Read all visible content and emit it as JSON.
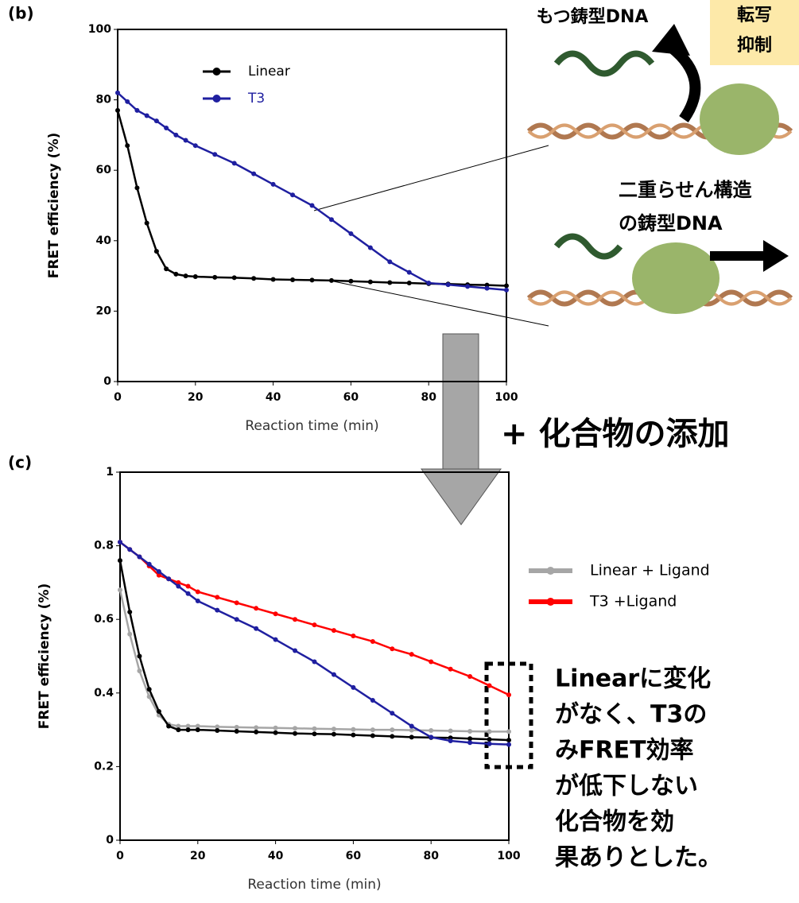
{
  "chart_data": [
    {
      "type": "line",
      "label": "(b)",
      "xlabel": "Reaction time (min)",
      "ylabel": "FRET efficiency (%)",
      "x": [
        0,
        2.5,
        5,
        7.5,
        10,
        12.5,
        15,
        17.5,
        20,
        25,
        30,
        35,
        40,
        45,
        50,
        55,
        60,
        65,
        70,
        75,
        80,
        85,
        90,
        95,
        100
      ],
      "series": [
        {
          "name": "Linear",
          "color": "#000000",
          "values": [
            77,
            67,
            55,
            45,
            37,
            32,
            30.5,
            30,
            29.8,
            29.6,
            29.5,
            29.3,
            29,
            28.9,
            28.8,
            28.7,
            28.5,
            28.3,
            28.1,
            28,
            27.8,
            27.7,
            27.5,
            27.4,
            27.2
          ]
        },
        {
          "name": "T3",
          "color": "#1f1fa0",
          "values": [
            82,
            79.5,
            77,
            75.5,
            74,
            72,
            70,
            68.5,
            67,
            64.5,
            62,
            59,
            56,
            53,
            50,
            46,
            42,
            38,
            34,
            31,
            28,
            27.5,
            27,
            26.5,
            26
          ]
        }
      ],
      "xlim": [
        0,
        100
      ],
      "xticks": [
        0,
        20,
        40,
        60,
        80,
        100
      ],
      "ylim": [
        0,
        100
      ],
      "yticks": [
        0,
        20,
        40,
        60,
        80,
        100
      ],
      "legend": "upper left"
    },
    {
      "type": "line",
      "label": "(c)",
      "xlabel": "Reaction time (min)",
      "ylabel": "FRET efficiency (%)",
      "x": [
        0,
        2.5,
        5,
        7.5,
        10,
        12.5,
        15,
        17.5,
        20,
        25,
        30,
        35,
        40,
        45,
        50,
        55,
        60,
        65,
        70,
        75,
        80,
        85,
        90,
        95,
        100
      ],
      "series": [
        {
          "name": "Linear + Ligand",
          "color": "#a6a6a6",
          "values": [
            0.68,
            0.56,
            0.46,
            0.39,
            0.34,
            0.315,
            0.31,
            0.31,
            0.31,
            0.308,
            0.307,
            0.306,
            0.305,
            0.304,
            0.303,
            0.302,
            0.301,
            0.3,
            0.3,
            0.299,
            0.298,
            0.297,
            0.296,
            0.295,
            0.295
          ]
        },
        {
          "name": "T3 +Ligand",
          "color": "#ff0000",
          "values": [
            0.81,
            0.79,
            0.77,
            0.745,
            0.72,
            0.71,
            0.7,
            0.69,
            0.675,
            0.66,
            0.645,
            0.63,
            0.615,
            0.6,
            0.585,
            0.57,
            0.555,
            0.54,
            0.52,
            0.505,
            0.485,
            0.465,
            0.445,
            0.42,
            0.395
          ]
        },
        {
          "color": "#000000",
          "values": [
            0.76,
            0.62,
            0.5,
            0.41,
            0.35,
            0.31,
            0.3,
            0.3,
            0.3,
            0.298,
            0.296,
            0.294,
            0.292,
            0.29,
            0.289,
            0.288,
            0.286,
            0.284,
            0.282,
            0.28,
            0.279,
            0.278,
            0.276,
            0.274,
            0.272
          ]
        },
        {
          "color": "#1f1fa0",
          "values": [
            0.81,
            0.79,
            0.77,
            0.75,
            0.73,
            0.71,
            0.69,
            0.67,
            0.65,
            0.625,
            0.6,
            0.575,
            0.545,
            0.515,
            0.485,
            0.45,
            0.415,
            0.38,
            0.345,
            0.31,
            0.28,
            0.27,
            0.265,
            0.262,
            0.26
          ]
        }
      ],
      "xlim": [
        0,
        100
      ],
      "xticks": [
        0,
        20,
        40,
        60,
        80,
        100
      ],
      "ylim": [
        0,
        1
      ],
      "yticks": [
        0,
        0.2,
        0.4,
        0.6,
        0.8,
        1
      ],
      "legend": "outside right"
    }
  ],
  "annotations": {
    "template_label": "もつ鋳型DNA",
    "suppression": [
      "転写",
      "抑制"
    ],
    "duplex": [
      "二重らせん構造",
      "の鋳型DNA"
    ],
    "addition": "+ 化合物の添加",
    "conclusion": [
      "Linearに変化",
      "がなく、T3の",
      "みFRET効率",
      "が低下しない",
      "化合物を効",
      "果ありとした。"
    ]
  }
}
